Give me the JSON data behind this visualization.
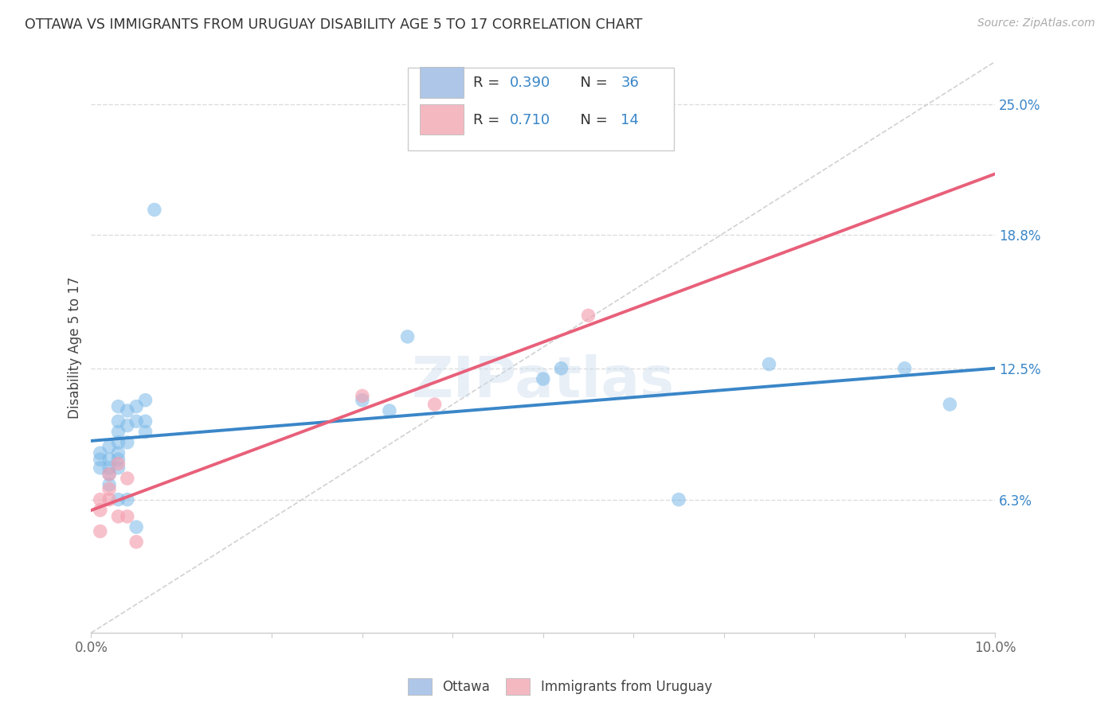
{
  "title": "OTTAWA VS IMMIGRANTS FROM URUGUAY DISABILITY AGE 5 TO 17 CORRELATION CHART",
  "source": "Source: ZipAtlas.com",
  "ylabel": "Disability Age 5 to 17",
  "xlabel": "",
  "xlim": [
    0.0,
    0.1
  ],
  "ylim": [
    0.0,
    0.27
  ],
  "xticks": [
    0.0,
    0.01,
    0.02,
    0.03,
    0.04,
    0.05,
    0.06,
    0.07,
    0.08,
    0.09,
    0.1
  ],
  "xticklabels": [
    "0.0%",
    "",
    "",
    "",
    "",
    "",
    "",
    "",
    "",
    "",
    "10.0%"
  ],
  "ytick_positions": [
    0.063,
    0.125,
    0.188,
    0.25
  ],
  "ytick_labels": [
    "6.3%",
    "12.5%",
    "18.8%",
    "25.0%"
  ],
  "ottawa_color": "#7ab8e8",
  "uruguay_color": "#f4a0b0",
  "R_ottawa": 0.39,
  "N_ottawa": 36,
  "R_uruguay": 0.71,
  "N_uruguay": 14,
  "ottawa_x": [
    0.001,
    0.001,
    0.001,
    0.002,
    0.002,
    0.002,
    0.002,
    0.002,
    0.003,
    0.003,
    0.003,
    0.003,
    0.003,
    0.003,
    0.003,
    0.003,
    0.004,
    0.004,
    0.004,
    0.004,
    0.005,
    0.005,
    0.005,
    0.006,
    0.006,
    0.006,
    0.007,
    0.03,
    0.033,
    0.035,
    0.05,
    0.052,
    0.065,
    0.075,
    0.09,
    0.095
  ],
  "ottawa_y": [
    0.085,
    0.082,
    0.078,
    0.088,
    0.082,
    0.078,
    0.075,
    0.07,
    0.107,
    0.1,
    0.095,
    0.09,
    0.085,
    0.082,
    0.078,
    0.063,
    0.105,
    0.098,
    0.09,
    0.063,
    0.107,
    0.1,
    0.05,
    0.11,
    0.1,
    0.095,
    0.2,
    0.11,
    0.105,
    0.14,
    0.12,
    0.125,
    0.063,
    0.127,
    0.125,
    0.108
  ],
  "uruguay_x": [
    0.001,
    0.001,
    0.001,
    0.002,
    0.002,
    0.002,
    0.003,
    0.003,
    0.004,
    0.004,
    0.005,
    0.03,
    0.038,
    0.055
  ],
  "uruguay_y": [
    0.063,
    0.058,
    0.048,
    0.075,
    0.068,
    0.063,
    0.08,
    0.055,
    0.073,
    0.055,
    0.043,
    0.112,
    0.108,
    0.15
  ],
  "watermark": "ZIPatlas",
  "legend_box_color_ottawa": "#aec6e8",
  "legend_box_color_uruguay": "#f4b8c1",
  "diagonal_color": "#cccccc",
  "blue_line_color": "#3a86c8",
  "pink_line_color": "#e8607a",
  "grid_color": "#dddddd",
  "background_color": "#ffffff",
  "blue_text_color": "#3a86c8",
  "tick_color": "#666666"
}
